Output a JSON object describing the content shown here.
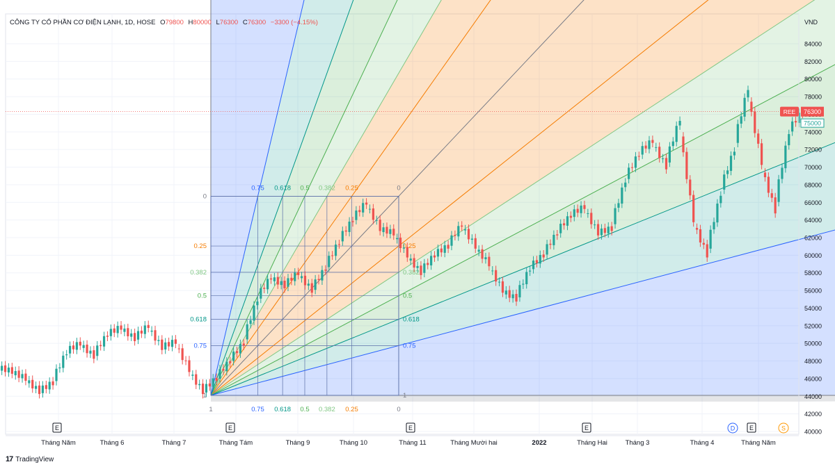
{
  "header": {
    "symbol_title": "CÔNG TY CỔ PHẦN CƠ ĐIỆN LẠNH, 1D, HOSE",
    "open_label": "O",
    "open_value": "79800",
    "high_label": "H",
    "high_value": "80000",
    "low_label": "L",
    "low_value": "76300",
    "close_label": "C",
    "close_value": "76300",
    "change": "−3300 (−4.15%)"
  },
  "price_axis": {
    "unit": "VND",
    "ticks": [
      "84000",
      "82000",
      "80000",
      "78000",
      "76000",
      "74000",
      "72000",
      "70000",
      "68000",
      "66000",
      "64000",
      "62000",
      "60000",
      "58000",
      "56000",
      "54000",
      "52000",
      "50000",
      "48000",
      "46000",
      "44000",
      "42000",
      "40000"
    ],
    "ticker_badge": "REE",
    "last_price_badge": "76300",
    "secondary_badge": "75000"
  },
  "time_axis": {
    "labels": [
      "Tháng Năm",
      "Tháng 6",
      "Tháng 7",
      "Tháng Tám",
      "Tháng 9",
      "Tháng 10",
      "Tháng 11",
      "Tháng Mười hai",
      "2022",
      "Tháng Hai",
      "Tháng 3",
      "Tháng 4",
      "Tháng Năm"
    ]
  },
  "events": {
    "earnings_label": "E",
    "dividend_label": "D",
    "split_label": "S"
  },
  "fib_fan": {
    "levels_left": [
      "0",
      "0.25",
      "0.382",
      "0.5",
      "0.618",
      "0.75",
      "1"
    ],
    "levels_right": [
      "0.25",
      "0.382",
      "0.5",
      "0.618",
      "0.75",
      "1"
    ],
    "levels_top": [
      "0.75",
      "0.618",
      "0.5",
      "0.382",
      "0.25",
      "0"
    ],
    "levels_bottom": [
      "1",
      "0.75",
      "0.618",
      "0.5",
      "0.382",
      "0.25",
      "0"
    ],
    "colors": {
      "0": "#787b86",
      "0.25": "#f57c00",
      "0.382": "#81c784",
      "0.5": "#4caf50",
      "0.618": "#009688",
      "0.75": "#2962ff",
      "1": "#787b86"
    }
  },
  "chart_data": {
    "type": "candlestick",
    "title": "CÔNG TY CỔ PHẦN CƠ ĐIỆN LẠNH, 1D, HOSE",
    "ylabel": "VND",
    "ylim": [
      40000,
      85000
    ],
    "last_close": 76300,
    "ohlc_last": {
      "open": 79800,
      "high": 80000,
      "low": 76300,
      "close": 76300
    },
    "fib_fan_anchor_start": {
      "date": "Tháng Tám",
      "price": 44100
    },
    "fib_fan_anchor_end": {
      "date": "Tháng 11",
      "price": 66700
    },
    "close_path": [
      [
        "Tháng Năm",
        46800
      ],
      [
        "Tháng Năm",
        46000
      ],
      [
        "Tháng Năm",
        44500
      ],
      [
        "Tháng Năm",
        45500
      ],
      [
        "Tháng 6",
        49000
      ],
      [
        "Tháng 6",
        50000
      ],
      [
        "Tháng 6",
        48500
      ],
      [
        "Tháng 6",
        51000
      ],
      [
        "Tháng 6",
        51800
      ],
      [
        "Tháng 7",
        50500
      ],
      [
        "Tháng 7",
        52000
      ],
      [
        "Tháng 7",
        49500
      ],
      [
        "Tháng 7",
        50200
      ],
      [
        "Tháng 7",
        47000
      ],
      [
        "Tháng Tám",
        44500
      ],
      [
        "Tháng Tám",
        46000
      ],
      [
        "Tháng Tám",
        48000
      ],
      [
        "Tháng Tám",
        50000
      ],
      [
        "Tháng 9",
        55000
      ],
      [
        "Tháng 9",
        57500
      ],
      [
        "Tháng 9",
        56500
      ],
      [
        "Tháng 9",
        58000
      ],
      [
        "Tháng 10",
        56000
      ],
      [
        "Tháng 10",
        58500
      ],
      [
        "Tháng 10",
        61500
      ],
      [
        "Tháng 10",
        64000
      ],
      [
        "Tháng 11",
        66000
      ],
      [
        "Tháng 11",
        63000
      ],
      [
        "Tháng 11",
        62500
      ],
      [
        "Tháng 11",
        60000
      ],
      [
        "Tháng Mười hai",
        58000
      ],
      [
        "Tháng Mười hai",
        60000
      ],
      [
        "Tháng Mười hai",
        61000
      ],
      [
        "Tháng Mười hai",
        63500
      ],
      [
        "2022",
        61000
      ],
      [
        "2022",
        59000
      ],
      [
        "2022",
        56000
      ],
      [
        "2022",
        55000
      ],
      [
        "Tháng Hai",
        58500
      ],
      [
        "Tháng Hai",
        60000
      ],
      [
        "Tháng Hai",
        62500
      ],
      [
        "Tháng 3",
        64500
      ],
      [
        "Tháng 3",
        65500
      ],
      [
        "Tháng 3",
        62500
      ],
      [
        "Tháng 3",
        63000
      ],
      [
        "Tháng 4",
        68500
      ],
      [
        "Tháng 4",
        71500
      ],
      [
        "Tháng 4",
        73000
      ],
      [
        "Tháng 4",
        70000
      ],
      [
        "Tháng 4",
        75500
      ],
      [
        "Tháng Năm",
        64000
      ],
      [
        "Tháng Năm",
        60000
      ],
      [
        "Tháng Năm",
        67000
      ],
      [
        "Tháng Năm",
        72000
      ],
      [
        "Tháng Năm",
        79000
      ],
      [
        "Tháng Năm",
        70500
      ],
      [
        "Tháng Năm",
        65000
      ],
      [
        "Tháng Năm",
        74000
      ],
      [
        "Tháng Năm",
        76300
      ]
    ]
  },
  "brand": {
    "logo": "17",
    "name": "TradingView"
  }
}
